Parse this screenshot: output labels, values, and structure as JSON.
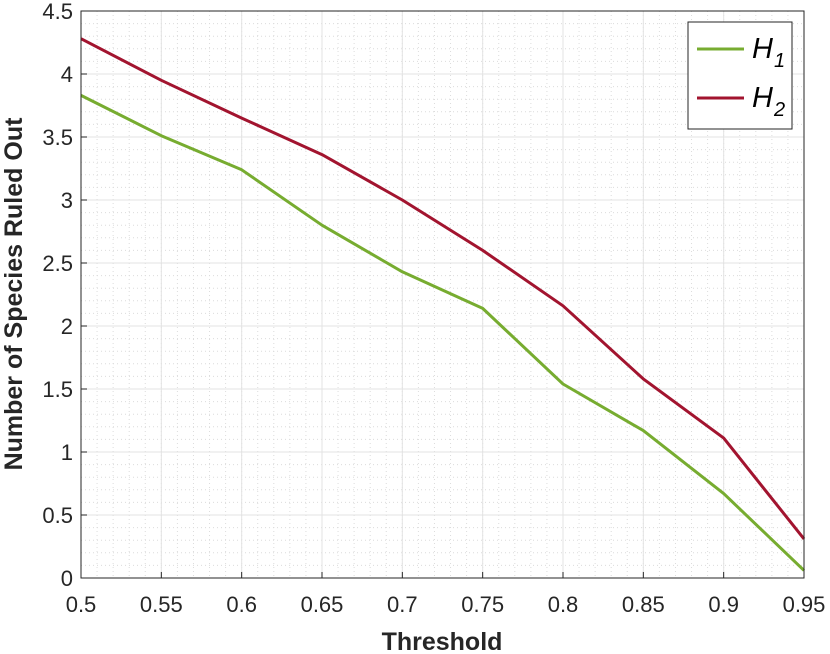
{
  "chart_data": {
    "type": "line",
    "title": "",
    "xlabel": "Threshold",
    "ylabel": "Number of Species Ruled Out",
    "xlim": [
      0.5,
      0.95
    ],
    "ylim": [
      0,
      4.5
    ],
    "x": [
      0.5,
      0.55,
      0.6,
      0.65,
      0.7,
      0.75,
      0.8,
      0.85,
      0.9,
      0.95
    ],
    "x_tick_labels": [
      "0.5",
      "0.55",
      "0.6",
      "0.65",
      "0.7",
      "0.75",
      "0.8",
      "0.85",
      "0.9",
      "0.95"
    ],
    "y_ticks": [
      0,
      0.5,
      1,
      1.5,
      2,
      2.5,
      3,
      3.5,
      4,
      4.5
    ],
    "y_tick_labels": [
      "0",
      "0.5",
      "1",
      "1.5",
      "2",
      "2.5",
      "3",
      "3.5",
      "4",
      "4.5"
    ],
    "grid": true,
    "minor_grid": true,
    "legend_position": "top-right",
    "series": [
      {
        "name": "H1",
        "label_base": "H",
        "label_sub": "1",
        "color": "#77AC30",
        "values": [
          3.83,
          3.51,
          3.24,
          2.8,
          2.43,
          2.14,
          1.54,
          1.17,
          0.67,
          0.06
        ]
      },
      {
        "name": "H2",
        "label_base": "H",
        "label_sub": "2",
        "color": "#A2142F",
        "values": [
          4.28,
          3.95,
          3.65,
          3.36,
          3.0,
          2.6,
          2.16,
          1.58,
          1.11,
          0.31
        ]
      }
    ]
  }
}
